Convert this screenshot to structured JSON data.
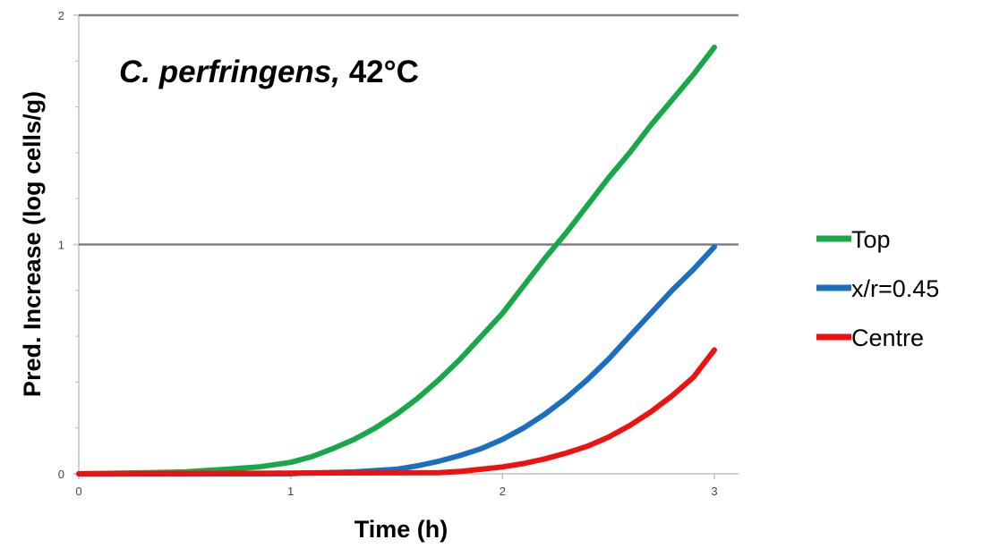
{
  "chart_data": {
    "type": "line",
    "title_italic": "C. perfringens,",
    "title_rest": " 42°C",
    "xlabel": "Time (h)",
    "ylabel": "Pred. Increase (log cells/g)",
    "xlim": [
      0,
      3
    ],
    "ylim": [
      0,
      2
    ],
    "x_ticks": [
      "0",
      "1",
      "2",
      "3"
    ],
    "y_ticks": [
      "0",
      "1",
      "2"
    ],
    "reference_lines_y": [
      1,
      2
    ],
    "legend_position": "right",
    "series": [
      {
        "name": "Top",
        "color": "#18a84a",
        "x": [
          0,
          0.33,
          0.5,
          0.7,
          0.85,
          1.0,
          1.1,
          1.2,
          1.3,
          1.4,
          1.5,
          1.6,
          1.7,
          1.8,
          1.9,
          2.0,
          2.1,
          2.2,
          2.3,
          2.4,
          2.5,
          2.6,
          2.7,
          2.8,
          2.9,
          3.0
        ],
        "y": [
          0,
          0.005,
          0.008,
          0.02,
          0.03,
          0.05,
          0.075,
          0.11,
          0.15,
          0.2,
          0.26,
          0.33,
          0.41,
          0.5,
          0.6,
          0.7,
          0.82,
          0.94,
          1.05,
          1.17,
          1.29,
          1.4,
          1.52,
          1.63,
          1.74,
          1.86
        ]
      },
      {
        "name": "x/r=0.45",
        "color": "#1c6fbf",
        "x": [
          0,
          1.0,
          1.05,
          1.3,
          1.5,
          1.6,
          1.7,
          1.8,
          1.9,
          2.0,
          2.1,
          2.2,
          2.3,
          2.4,
          2.5,
          2.6,
          2.7,
          2.8,
          2.9,
          3.0
        ],
        "y": [
          0,
          0,
          0.003,
          0.008,
          0.02,
          0.035,
          0.055,
          0.08,
          0.11,
          0.15,
          0.2,
          0.26,
          0.33,
          0.41,
          0.5,
          0.6,
          0.7,
          0.8,
          0.89,
          0.99
        ]
      },
      {
        "name": "Centre",
        "color": "#ee1111",
        "x": [
          0,
          1.7,
          1.8,
          1.9,
          2.0,
          2.1,
          2.2,
          2.3,
          2.4,
          2.5,
          2.6,
          2.7,
          2.8,
          2.9,
          3.0
        ],
        "y": [
          0,
          0.005,
          0.01,
          0.02,
          0.03,
          0.045,
          0.065,
          0.09,
          0.12,
          0.16,
          0.21,
          0.27,
          0.34,
          0.42,
          0.54
        ]
      }
    ]
  }
}
